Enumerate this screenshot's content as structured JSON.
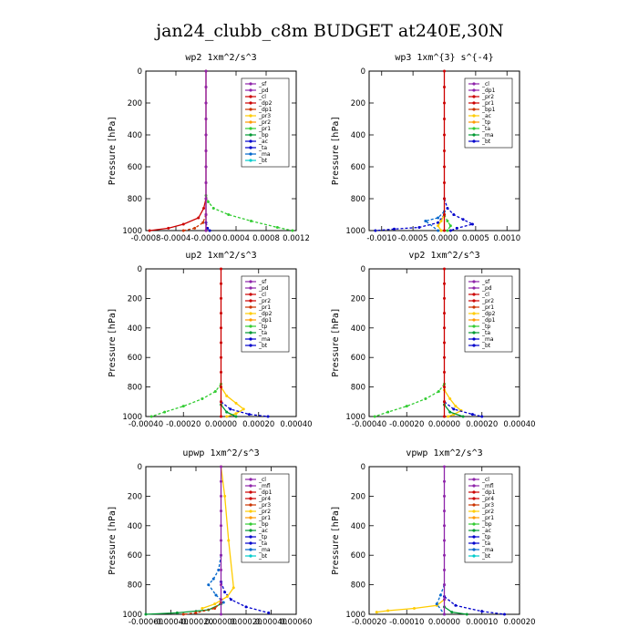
{
  "figure": {
    "title": "jan24_clubb_c8m  BUDGET at240E,30N"
  },
  "chart_data": [
    {
      "type": "line",
      "title": "wp2  1xm^2/s^3",
      "ylabel": "Pressure [hPa]",
      "xlim": [
        -0.0008,
        0.0012
      ],
      "ylim": [
        1000,
        0
      ],
      "xticks": [
        -0.0008,
        -0.0004,
        0.0,
        0.0004,
        0.0008,
        0.0012
      ],
      "xtick_labels": [
        "-0.0008",
        "-0.0004",
        "-0.0000",
        "0.0004",
        "0.0008",
        "0.0012"
      ],
      "yticks": [
        0,
        200,
        400,
        600,
        800,
        1000
      ],
      "legend": [
        "_sf",
        "_pd",
        "_cl",
        "_dp2",
        "_dp1",
        "_pr3",
        "_pr2",
        "_pr1",
        "_bp",
        "_ac",
        "_ta",
        "_ma",
        "_bt"
      ],
      "series": [
        {
          "name": "_pr1",
          "color": "#33cc33",
          "style": "dash",
          "x": [
            0,
            3e-05,
            0.0001,
            0.0003,
            0.0006,
            0.00095,
            0.00115
          ],
          "y": [
            780,
            820,
            860,
            900,
            940,
            980,
            1000
          ]
        },
        {
          "name": "_dp1",
          "color": "#cc0000",
          "style": "solid",
          "x": [
            0,
            -3e-05,
            -0.0001,
            -0.0003,
            -0.0005,
            -0.00075
          ],
          "y": [
            800,
            860,
            920,
            960,
            985,
            1000
          ]
        },
        {
          "name": "_pr3",
          "color": "#cc3300",
          "style": "dash",
          "x": [
            0,
            -4e-05,
            -0.00015,
            -0.0003
          ],
          "y": [
            900,
            950,
            985,
            1000
          ]
        },
        {
          "name": "_ac",
          "color": "#0000cc",
          "style": "dash",
          "x": [
            0,
            2e-05,
            5e-05
          ],
          "y": [
            950,
            985,
            1000
          ]
        },
        {
          "name": "_dp2",
          "color": "#cc0000",
          "style": "solid",
          "x": [
            0,
            0,
            0,
            0,
            0,
            0,
            0,
            0,
            0,
            0,
            0
          ],
          "y": [
            0,
            100,
            200,
            300,
            400,
            500,
            600,
            700,
            800,
            900,
            1000
          ]
        },
        {
          "name": "_pd",
          "color": "#8e24aa",
          "style": "solid",
          "x": [
            0,
            0,
            0,
            0,
            0,
            0,
            0,
            0,
            0,
            0,
            0
          ],
          "y": [
            0,
            100,
            200,
            300,
            400,
            500,
            600,
            700,
            800,
            900,
            1000
          ]
        }
      ]
    },
    {
      "type": "line",
      "title": "wp3  1xm^{3} s^{-4}",
      "ylabel": "Pressure [hPa]",
      "xlim": [
        -0.0012,
        0.0012
      ],
      "ylim": [
        1000,
        0
      ],
      "xticks": [
        -0.001,
        -0.0005,
        0.0,
        0.0005,
        0.001
      ],
      "xtick_labels": [
        "-0.0010",
        "-0.0005",
        "0.0000",
        "0.0005",
        "0.0010"
      ],
      "yticks": [
        0,
        200,
        400,
        600,
        800,
        1000
      ],
      "legend": [
        "_cl",
        "_dp1",
        "_pr2",
        "_pr1",
        "_bp1",
        "_ac",
        "_tp",
        "_ta",
        "_ma",
        "_bt"
      ],
      "series": [
        {
          "name": "_tp",
          "color": "#0000cc",
          "style": "dash",
          "x": [
            0,
            5e-05,
            0.00015,
            0.0003,
            0.00045,
            0.0002,
            0.0001
          ],
          "y": [
            800,
            860,
            900,
            930,
            960,
            985,
            1000
          ]
        },
        {
          "name": "_ta",
          "color": "#0000cc",
          "style": "dash",
          "x": [
            0,
            -0.0001,
            -0.0004,
            -0.0008,
            -0.0011
          ],
          "y": [
            900,
            950,
            980,
            990,
            1000
          ]
        },
        {
          "name": "_ma",
          "color": "#0066cc",
          "style": "dash",
          "x": [
            0,
            -0.0001,
            -0.0003,
            -0.0001
          ],
          "y": [
            880,
            920,
            940,
            1000
          ]
        },
        {
          "name": "_pr1",
          "color": "#ffcc00",
          "style": "solid",
          "x": [
            0,
            -5e-05,
            -0.0001,
            -5e-05
          ],
          "y": [
            900,
            940,
            970,
            1000
          ]
        },
        {
          "name": "_ac",
          "color": "#33cc33",
          "style": "dash",
          "x": [
            0,
            5e-05,
            0.0001,
            5e-05
          ],
          "y": [
            900,
            940,
            970,
            1000
          ]
        },
        {
          "name": "_dp1",
          "color": "#cc0000",
          "style": "solid",
          "x": [
            0,
            0,
            0,
            0,
            0,
            0,
            0,
            0,
            0,
            0,
            0
          ],
          "y": [
            0,
            100,
            200,
            300,
            400,
            500,
            600,
            700,
            800,
            900,
            1000
          ]
        }
      ]
    },
    {
      "type": "line",
      "title": "up2  1xm^2/s^3",
      "ylabel": "Pressure [hPa]",
      "xlim": [
        -0.0004,
        0.0004
      ],
      "ylim": [
        1000,
        0
      ],
      "xticks": [
        -0.0004,
        -0.0002,
        0.0,
        0.0002,
        0.0004
      ],
      "xtick_labels": [
        "-0.00040",
        "-0.00020",
        "0.00000",
        "0.00020",
        "0.00040"
      ],
      "yticks": [
        0,
        200,
        400,
        600,
        800,
        1000
      ],
      "legend": [
        "_sf",
        "_pd",
        "_cl",
        "_pr2",
        "_pr1",
        "_dp2",
        "_dp1",
        "_tp",
        "_ta",
        "_ma",
        "_bt"
      ],
      "series": [
        {
          "name": "_dp1",
          "color": "#33cc33",
          "style": "dash",
          "x": [
            0,
            -3e-05,
            -0.0001,
            -0.0002,
            -0.0003,
            -0.00037
          ],
          "y": [
            780,
            830,
            880,
            930,
            970,
            1000
          ]
        },
        {
          "name": "_pr1",
          "color": "#ffcc00",
          "style": "solid",
          "x": [
            0,
            3e-05,
            8e-05,
            0.00012,
            8e-05,
            3e-05
          ],
          "y": [
            800,
            860,
            910,
            950,
            980,
            1000
          ]
        },
        {
          "name": "_tp",
          "color": "#0000cc",
          "style": "dash",
          "x": [
            0,
            5e-05,
            0.00015,
            0.00025
          ],
          "y": [
            900,
            950,
            985,
            1000
          ]
        },
        {
          "name": "_dp2",
          "color": "#009933",
          "style": "solid",
          "x": [
            0,
            3e-05,
            8e-05
          ],
          "y": [
            920,
            970,
            1000
          ]
        },
        {
          "name": "_cl",
          "color": "#cc0000",
          "style": "solid",
          "x": [
            0,
            0,
            0,
            0,
            0,
            0,
            0,
            0,
            0,
            0,
            0
          ],
          "y": [
            0,
            100,
            200,
            300,
            400,
            500,
            600,
            700,
            800,
            900,
            1000
          ]
        }
      ]
    },
    {
      "type": "line",
      "title": "vp2  1xm^2/s^3",
      "ylabel": "Pressure [hPa]",
      "xlim": [
        -0.0004,
        0.0004
      ],
      "ylim": [
        1000,
        0
      ],
      "xticks": [
        -0.0004,
        -0.0002,
        0.0,
        0.0002,
        0.0004
      ],
      "xtick_labels": [
        "-0.00040",
        "-0.00020",
        "0.00000",
        "0.00020",
        "0.00040"
      ],
      "yticks": [
        0,
        200,
        400,
        600,
        800,
        1000
      ],
      "legend": [
        "_sf",
        "_pd",
        "_cl",
        "_pr2",
        "_pr1",
        "_dp2",
        "_dp1",
        "_tp",
        "_ta",
        "_ma",
        "_bt"
      ],
      "series": [
        {
          "name": "_dp1",
          "color": "#33cc33",
          "style": "dash",
          "x": [
            0,
            -3e-05,
            -0.0001,
            -0.0002,
            -0.0003,
            -0.00037
          ],
          "y": [
            780,
            830,
            880,
            930,
            970,
            1000
          ]
        },
        {
          "name": "_pr1",
          "color": "#ffcc00",
          "style": "solid",
          "x": [
            0,
            3e-05,
            6e-05,
            9e-05,
            5e-05,
            2e-05
          ],
          "y": [
            820,
            880,
            930,
            960,
            985,
            1000
          ]
        },
        {
          "name": "_tp",
          "color": "#0000cc",
          "style": "dash",
          "x": [
            0,
            5e-05,
            0.00015,
            0.0002
          ],
          "y": [
            900,
            950,
            985,
            1000
          ]
        },
        {
          "name": "_dp2",
          "color": "#009933",
          "style": "solid",
          "x": [
            0,
            3e-05,
            0.0001
          ],
          "y": [
            920,
            970,
            1000
          ]
        },
        {
          "name": "_cl",
          "color": "#cc0000",
          "style": "solid",
          "x": [
            0,
            0,
            0,
            0,
            0,
            0,
            0,
            0,
            0,
            0,
            0
          ],
          "y": [
            0,
            100,
            200,
            300,
            400,
            500,
            600,
            700,
            800,
            900,
            1000
          ]
        }
      ]
    },
    {
      "type": "line",
      "title": "upwp  1xm^2/s^3",
      "ylabel": "Pressure [hPa]",
      "xlim": [
        -0.0006,
        0.0006
      ],
      "ylim": [
        1000,
        0
      ],
      "xticks": [
        -0.0006,
        -0.0004,
        -0.0002,
        0.0,
        0.0002,
        0.0004,
        0.0006
      ],
      "xtick_labels": [
        "-0.00060",
        "-0.00040",
        "-0.00020",
        "0.00000",
        "0.00020",
        "0.00040",
        "0.00060"
      ],
      "yticks": [
        0,
        200,
        400,
        600,
        800,
        1000
      ],
      "legend": [
        "_cl",
        "_mfl",
        "_dp1",
        "_pr4",
        "_pr3",
        "_pr2",
        "_pr1",
        "_bp",
        "_ac",
        "_tp",
        "_ta",
        "_ma",
        "_bt"
      ],
      "series": [
        {
          "name": "_ma",
          "color": "#0066cc",
          "style": "dash",
          "x": [
            0,
            -2e-05,
            -6e-05,
            -0.0001,
            -4e-05,
            2e-05
          ],
          "y": [
            600,
            700,
            760,
            800,
            870,
            920
          ]
        },
        {
          "name": "_tp",
          "color": "#0000cc",
          "style": "dash",
          "x": [
            0,
            3e-05,
            8e-05,
            0.0002,
            0.00038
          ],
          "y": [
            780,
            850,
            900,
            950,
            990
          ]
        },
        {
          "name": "_pr1",
          "color": "#ffcc00",
          "style": "solid",
          "x": [
            0,
            3e-05,
            6e-05,
            0.0001,
            5e-05,
            -5e-05,
            -0.00015
          ],
          "y": [
            0,
            200,
            500,
            820,
            880,
            930,
            960
          ]
        },
        {
          "name": "_ac",
          "color": "#009933",
          "style": "solid",
          "x": [
            0,
            -0.0001,
            -0.00035,
            -0.0006
          ],
          "y": [
            930,
            970,
            990,
            1000
          ]
        },
        {
          "name": "_pr3",
          "color": "#cc3300",
          "style": "dash",
          "x": [
            0,
            -5e-05,
            -0.0002,
            -0.0003
          ],
          "y": [
            920,
            960,
            990,
            1000
          ]
        },
        {
          "name": "_mfl",
          "color": "#8e24aa",
          "style": "solid",
          "x": [
            0,
            0,
            0,
            0,
            0,
            0,
            0,
            0,
            0,
            0,
            0
          ],
          "y": [
            0,
            100,
            200,
            300,
            400,
            500,
            600,
            700,
            800,
            900,
            1000
          ]
        }
      ]
    },
    {
      "type": "line",
      "title": "vpwp  1xm^2/s^3",
      "ylabel": "Pressure [hPa]",
      "xlim": [
        -0.0002,
        0.0002
      ],
      "ylim": [
        1000,
        0
      ],
      "xticks": [
        -0.0002,
        -0.0001,
        0.0,
        0.0001,
        0.0002
      ],
      "xtick_labels": [
        "-0.00020",
        "-0.00010",
        "0.00000",
        "0.00010",
        "0.00020"
      ],
      "yticks": [
        0,
        200,
        400,
        600,
        800,
        1000
      ],
      "legend": [
        "_cl",
        "_mfl",
        "_dp1",
        "_pr4",
        "_pr3",
        "_pr2",
        "_pr1",
        "_bp",
        "_ac",
        "_tp",
        "_ta",
        "_ma",
        "_bt"
      ],
      "series": [
        {
          "name": "_pr1",
          "color": "#ffcc00",
          "style": "solid",
          "x": [
            0,
            -2e-05,
            -8e-05,
            -0.00015,
            -0.00018
          ],
          "y": [
            900,
            940,
            960,
            975,
            985
          ]
        },
        {
          "name": "_tp",
          "color": "#0000cc",
          "style": "dash",
          "x": [
            0,
            3e-05,
            0.0001,
            0.00016
          ],
          "y": [
            880,
            940,
            980,
            1000
          ]
        },
        {
          "name": "_ma",
          "color": "#0066cc",
          "style": "dash",
          "x": [
            0,
            -1e-05,
            -2e-05,
            0
          ],
          "y": [
            800,
            870,
            930,
            1000
          ]
        },
        {
          "name": "_ac",
          "color": "#009933",
          "style": "solid",
          "x": [
            0,
            2e-05,
            6e-05
          ],
          "y": [
            950,
            985,
            1000
          ]
        },
        {
          "name": "_mfl",
          "color": "#8e24aa",
          "style": "solid",
          "x": [
            0,
            0,
            0,
            0,
            0,
            0,
            0,
            0,
            0,
            0,
            0
          ],
          "y": [
            0,
            100,
            200,
            300,
            400,
            500,
            600,
            700,
            800,
            900,
            1000
          ]
        }
      ]
    }
  ]
}
